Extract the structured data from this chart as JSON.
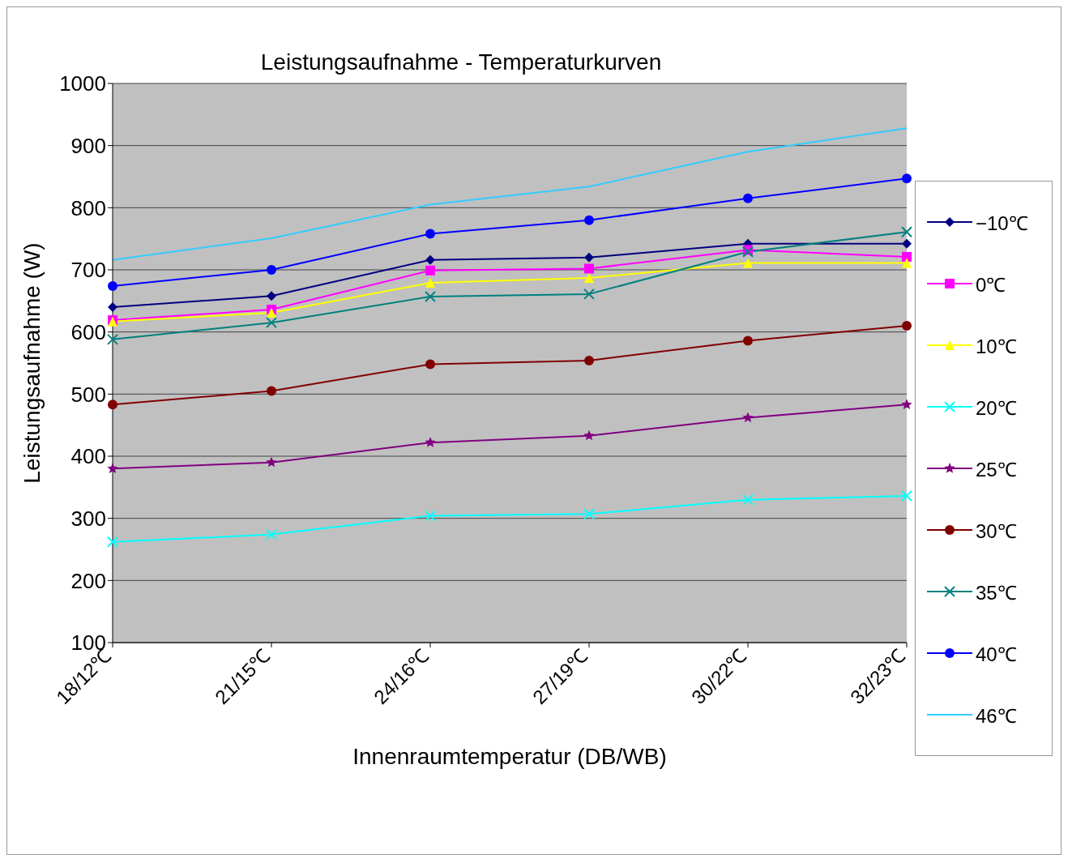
{
  "chart_data": {
    "type": "line",
    "title": "Leistungsaufnahme - Temperaturkurven",
    "xlabel": "Innenraumtemperatur (DB/WB)",
    "ylabel": "Leistungsaufnahme (W)",
    "categories": [
      "18/12℃",
      "21/15℃",
      "24/16℃",
      "27/19℃",
      "30/22℃",
      "32/23℃"
    ],
    "ylim": [
      100,
      1000
    ],
    "yticks": [
      100,
      200,
      300,
      400,
      500,
      600,
      700,
      800,
      900,
      1000
    ],
    "grid": "y",
    "legend": "right",
    "series": [
      {
        "name": "−10℃",
        "color": "#000080",
        "marker": "diamond",
        "values": [
          640,
          658,
          716,
          720,
          742,
          742
        ]
      },
      {
        "name": "0℃",
        "color": "#ff00ff",
        "marker": "square",
        "values": [
          619,
          636,
          699,
          702,
          732,
          721
        ]
      },
      {
        "name": "10℃",
        "color": "#ffff00",
        "marker": "triangle",
        "values": [
          617,
          631,
          679,
          687,
          711,
          711
        ]
      },
      {
        "name": "20℃",
        "color": "#00ffff",
        "marker": "cross",
        "values": [
          262,
          274,
          304,
          307,
          330,
          336
        ]
      },
      {
        "name": "25℃",
        "color": "#800080",
        "marker": "star",
        "values": [
          380,
          390,
          422,
          433,
          462,
          483
        ]
      },
      {
        "name": "30℃",
        "color": "#800000",
        "marker": "circle",
        "values": [
          483,
          505,
          548,
          554,
          586,
          610
        ]
      },
      {
        "name": "35℃",
        "color": "#008080",
        "marker": "cross",
        "values": [
          588,
          615,
          657,
          661,
          729,
          761
        ]
      },
      {
        "name": "40℃",
        "color": "#0000ff",
        "marker": "circle",
        "values": [
          674,
          700,
          758,
          780,
          815,
          847
        ]
      },
      {
        "name": "46℃",
        "color": "#33ccff",
        "marker": "none",
        "values": [
          716,
          751,
          805,
          834,
          890,
          928
        ]
      }
    ]
  }
}
